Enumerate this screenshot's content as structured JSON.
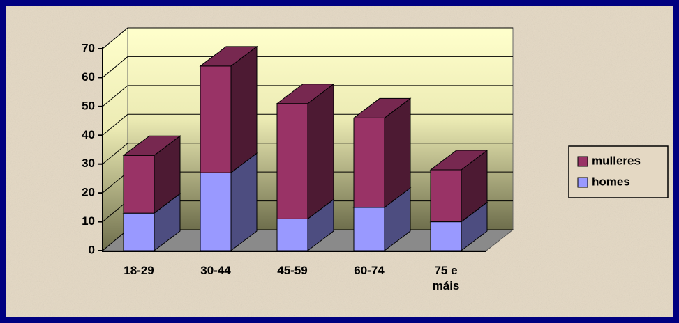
{
  "chart_data": {
    "type": "bar3d_stacked",
    "categories": [
      "18-29",
      "30-44",
      "45-59",
      "60-74",
      "75 e máis"
    ],
    "series": [
      {
        "name": "mulleres",
        "color": "#993366",
        "values": [
          20,
          37,
          40,
          31,
          18
        ]
      },
      {
        "name": "homes",
        "color": "#9999ff",
        "values": [
          13,
          27,
          11,
          15,
          10
        ]
      }
    ],
    "ylim": [
      0,
      70
    ],
    "yticks": [
      0,
      10,
      20,
      30,
      40,
      50,
      60,
      70
    ],
    "grid": true,
    "legend": "right"
  }
}
